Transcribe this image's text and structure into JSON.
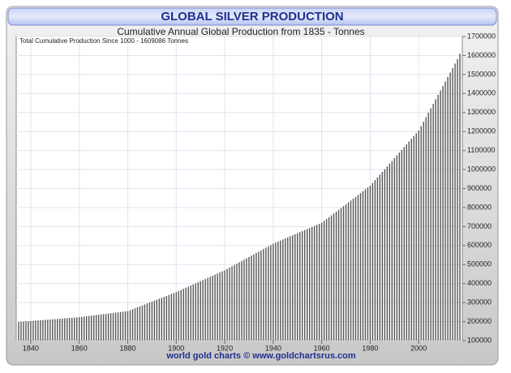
{
  "chart_data": {
    "type": "bar",
    "title": "GLOBAL SILVER PRODUCTION",
    "subtitle": "Cumulative Annual Global Production from 1835 - Tonnes",
    "annotation": "Total Cumulative Production Since 1000 - 1609086  Tonnes",
    "footer": "world gold charts © www.goldchartsrus.com",
    "color": "#555555",
    "grid": true,
    "xlim": [
      1834,
      2018
    ],
    "xticks": [
      1840,
      1860,
      1880,
      1900,
      1920,
      1940,
      1960,
      1980,
      2000
    ],
    "ylim": [
      100000,
      1700000
    ],
    "yticks": [
      100000,
      200000,
      300000,
      400000,
      500000,
      600000,
      700000,
      800000,
      900000,
      1000000,
      1100000,
      1200000,
      1300000,
      1400000,
      1500000,
      1600000,
      1700000
    ],
    "x": [
      1835,
      1836,
      1837,
      1838,
      1839,
      1840,
      1841,
      1842,
      1843,
      1844,
      1845,
      1846,
      1847,
      1848,
      1849,
      1850,
      1851,
      1852,
      1853,
      1854,
      1855,
      1856,
      1857,
      1858,
      1859,
      1860,
      1861,
      1862,
      1863,
      1864,
      1865,
      1866,
      1867,
      1868,
      1869,
      1870,
      1871,
      1872,
      1873,
      1874,
      1875,
      1876,
      1877,
      1878,
      1879,
      1880,
      1881,
      1882,
      1883,
      1884,
      1885,
      1886,
      1887,
      1888,
      1889,
      1890,
      1891,
      1892,
      1893,
      1894,
      1895,
      1896,
      1897,
      1898,
      1899,
      1900,
      1901,
      1902,
      1903,
      1904,
      1905,
      1906,
      1907,
      1908,
      1909,
      1910,
      1911,
      1912,
      1913,
      1914,
      1915,
      1916,
      1917,
      1918,
      1919,
      1920,
      1921,
      1922,
      1923,
      1924,
      1925,
      1926,
      1927,
      1928,
      1929,
      1930,
      1931,
      1932,
      1933,
      1934,
      1935,
      1936,
      1937,
      1938,
      1939,
      1940,
      1941,
      1942,
      1943,
      1944,
      1945,
      1946,
      1947,
      1948,
      1949,
      1950,
      1951,
      1952,
      1953,
      1954,
      1955,
      1956,
      1957,
      1958,
      1959,
      1960,
      1961,
      1962,
      1963,
      1964,
      1965,
      1966,
      1967,
      1968,
      1969,
      1970,
      1971,
      1972,
      1973,
      1974,
      1975,
      1976,
      1977,
      1978,
      1979,
      1980,
      1981,
      1982,
      1983,
      1984,
      1985,
      1986,
      1987,
      1988,
      1989,
      1990,
      1991,
      1992,
      1993,
      1994,
      1995,
      1996,
      1997,
      1998,
      1999,
      2000,
      2001,
      2002,
      2003,
      2004,
      2005,
      2006,
      2007,
      2008,
      2009,
      2010,
      2011,
      2012,
      2013,
      2014,
      2015,
      2016,
      2017
    ],
    "values": [
      198000,
      199000,
      200000,
      201000,
      202000,
      203000,
      204000,
      205000,
      206000,
      207000,
      208000,
      209000,
      210000,
      211000,
      212000,
      213000,
      214000,
      215000,
      216000,
      217000,
      218000,
      219000,
      220000,
      221000,
      222000,
      223000,
      224600,
      226200,
      227800,
      229400,
      231000,
      232600,
      234200,
      235800,
      237400,
      239000,
      240600,
      242200,
      243800,
      245400,
      247000,
      248600,
      250200,
      251800,
      253400,
      255000,
      260000,
      265000,
      270000,
      275000,
      280000,
      285000,
      290000,
      295000,
      300000,
      305000,
      310000,
      315000,
      320000,
      325000,
      330000,
      335000,
      340000,
      345000,
      350000,
      355000,
      360750,
      366500,
      372250,
      378000,
      383750,
      389500,
      395250,
      401000,
      406750,
      412500,
      418250,
      424000,
      429750,
      435500,
      441250,
      447000,
      452750,
      458500,
      464250,
      470000,
      477000,
      484000,
      491000,
      498000,
      505000,
      512000,
      519000,
      526000,
      533000,
      540000,
      547000,
      554000,
      561000,
      568000,
      575000,
      582000,
      589000,
      596000,
      603000,
      610000,
      615500,
      621000,
      626500,
      632000,
      637500,
      643000,
      648500,
      654000,
      659500,
      665000,
      670500,
      676000,
      681500,
      687000,
      692500,
      698000,
      703500,
      709000,
      714500,
      720000,
      729750,
      739500,
      749250,
      759000,
      768750,
      778500,
      788250,
      798000,
      807750,
      817500,
      827250,
      837000,
      846750,
      856500,
      866250,
      876000,
      885750,
      895500,
      905250,
      915000,
      929500,
      944000,
      958500,
      973000,
      987500,
      1002000,
      1016500,
      1031000,
      1045500,
      1060000,
      1074500,
      1089000,
      1103500,
      1118000,
      1132500,
      1147000,
      1161500,
      1176000,
      1190500,
      1205000,
      1228500,
      1252000,
      1275500,
      1299000,
      1322500,
      1346000,
      1369500,
      1393000,
      1416500,
      1440000,
      1463500,
      1487000,
      1510500,
      1534000,
      1557500,
      1581000,
      1609086
    ]
  }
}
